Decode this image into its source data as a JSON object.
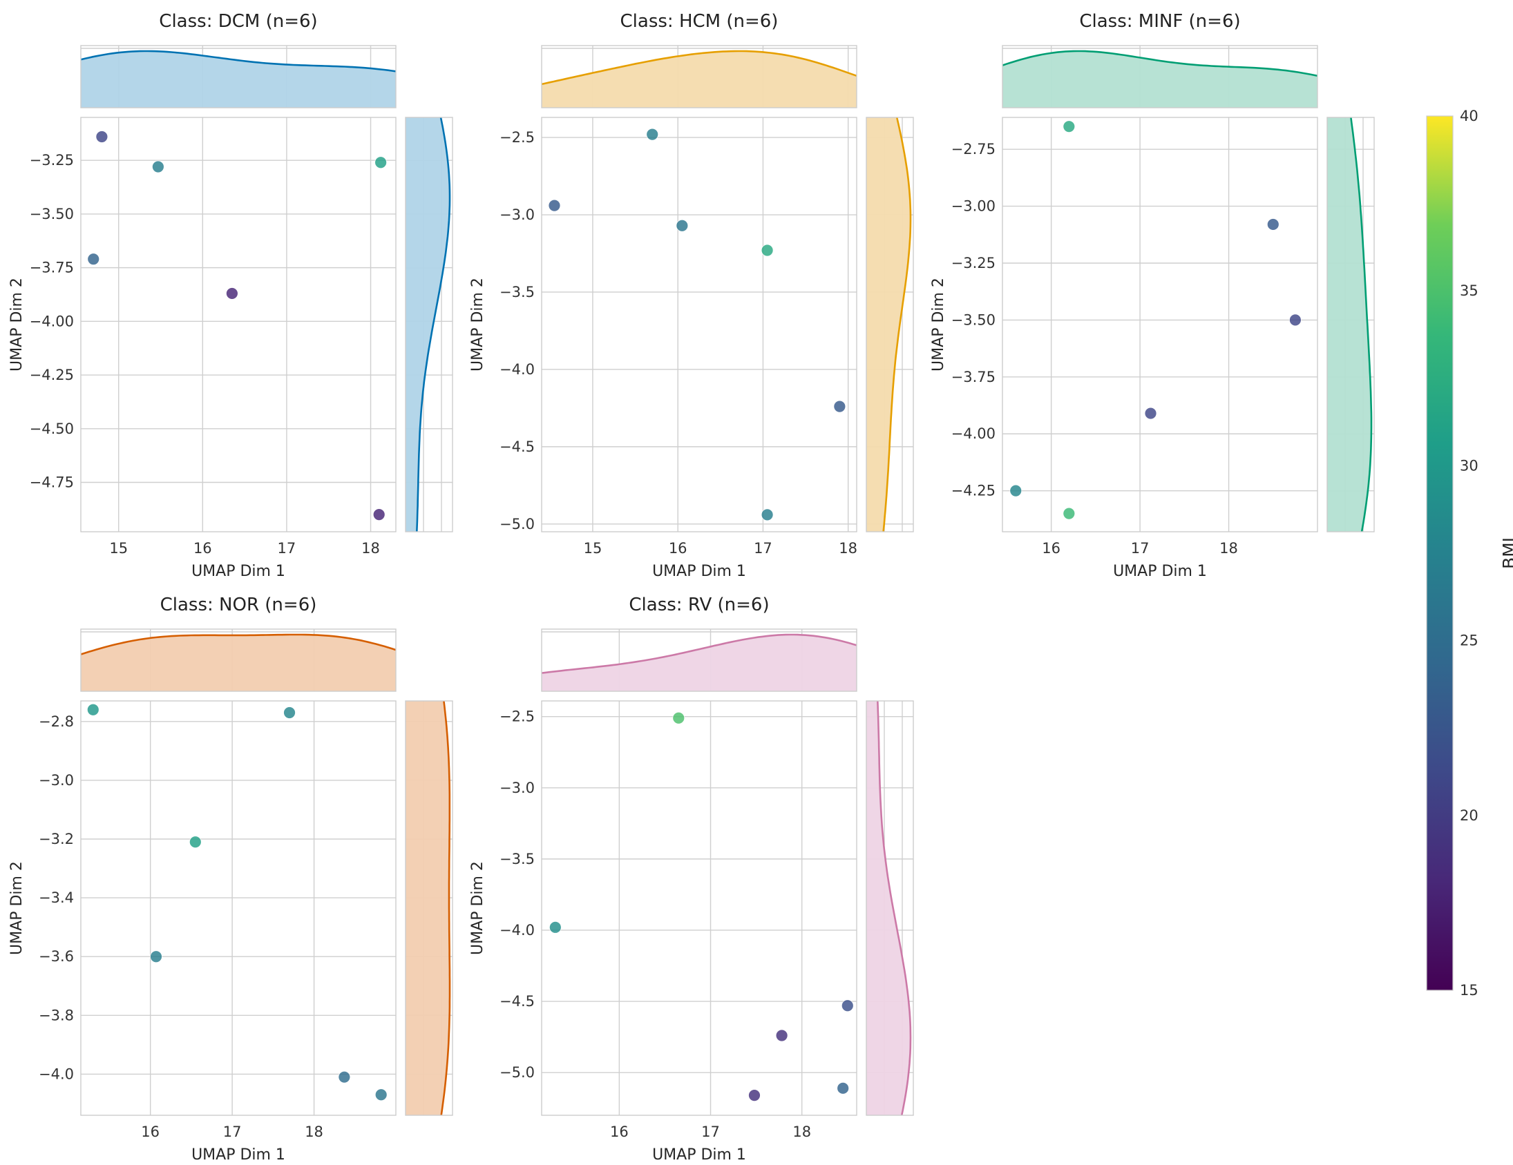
{
  "chart_data": {
    "type": "scatter",
    "colorbar": {
      "label": "BMI",
      "range": [
        15,
        40
      ],
      "ticks": [
        15,
        20,
        25,
        30,
        35,
        40
      ],
      "colormap": "viridis"
    },
    "xlabel": "UMAP Dim 1",
    "ylabel": "UMAP Dim 2",
    "panels": [
      {
        "title": "Class: DCM (n=6)",
        "color": "#0072b2",
        "fill": "#b0d4e8",
        "xlim": [
          14.55,
          18.3
        ],
        "ylim": [
          -4.98,
          -3.05
        ],
        "xticks": [
          15,
          16,
          17,
          18
        ],
        "yticks": [
          -3.25,
          -3.5,
          -3.75,
          -4.0,
          -4.25,
          -4.5,
          -4.75
        ],
        "yfmt": 2,
        "points": [
          {
            "x": 14.8,
            "y": -3.14,
            "bmi": 21
          },
          {
            "x": 15.47,
            "y": -3.28,
            "bmi": 27
          },
          {
            "x": 18.12,
            "y": -3.26,
            "bmi": 31
          },
          {
            "x": 14.7,
            "y": -3.71,
            "bmi": 24
          },
          {
            "x": 16.35,
            "y": -3.87,
            "bmi": 18
          },
          {
            "x": 18.1,
            "y": -4.9,
            "bmi": 18
          }
        ]
      },
      {
        "title": "Class: HCM (n=6)",
        "color": "#e69f00",
        "fill": "#f4dbad",
        "xlim": [
          14.4,
          18.1
        ],
        "ylim": [
          -5.05,
          -2.37
        ],
        "xticks": [
          15,
          16,
          17,
          18
        ],
        "yticks": [
          -2.5,
          -3.0,
          -3.5,
          -4.0,
          -4.5,
          -5.0
        ],
        "yfmt": 1,
        "points": [
          {
            "x": 15.7,
            "y": -2.48,
            "bmi": 27
          },
          {
            "x": 14.55,
            "y": -2.94,
            "bmi": 23
          },
          {
            "x": 16.05,
            "y": -3.07,
            "bmi": 26
          },
          {
            "x": 17.05,
            "y": -3.23,
            "bmi": 32
          },
          {
            "x": 17.9,
            "y": -4.24,
            "bmi": 23
          },
          {
            "x": 17.05,
            "y": -4.94,
            "bmi": 27
          }
        ]
      },
      {
        "title": "Class: MINF (n=6)",
        "color": "#009e73",
        "fill": "#b3e0d2",
        "xlim": [
          15.45,
          19.0
        ],
        "ylim": [
          -4.43,
          -2.61
        ],
        "xticks": [
          16,
          17,
          18
        ],
        "yticks": [
          -2.75,
          -3.0,
          -3.25,
          -3.5,
          -3.75,
          -4.0,
          -4.25
        ],
        "yfmt": 2,
        "points": [
          {
            "x": 16.2,
            "y": -2.65,
            "bmi": 32
          },
          {
            "x": 18.5,
            "y": -3.08,
            "bmi": 23
          },
          {
            "x": 18.75,
            "y": -3.5,
            "bmi": 21
          },
          {
            "x": 17.12,
            "y": -3.91,
            "bmi": 21
          },
          {
            "x": 15.6,
            "y": -4.25,
            "bmi": 28
          },
          {
            "x": 16.2,
            "y": -4.35,
            "bmi": 34
          }
        ]
      },
      {
        "title": "Class: NOR (n=6)",
        "color": "#d55e00",
        "fill": "#f2cdb0",
        "xlim": [
          15.15,
          19.0
        ],
        "ylim": [
          -4.14,
          -2.73
        ],
        "xticks": [
          16,
          17,
          18
        ],
        "yticks": [
          -2.8,
          -3.0,
          -3.2,
          -3.4,
          -3.6,
          -3.8,
          -4.0
        ],
        "yfmt": 1,
        "points": [
          {
            "x": 15.3,
            "y": -2.76,
            "bmi": 30
          },
          {
            "x": 17.7,
            "y": -2.77,
            "bmi": 28
          },
          {
            "x": 16.55,
            "y": -3.21,
            "bmi": 31
          },
          {
            "x": 16.07,
            "y": -3.6,
            "bmi": 27
          },
          {
            "x": 18.37,
            "y": -4.01,
            "bmi": 25
          },
          {
            "x": 18.82,
            "y": -4.07,
            "bmi": 26
          }
        ]
      },
      {
        "title": "Class: RV (n=6)",
        "color": "#cc79a7",
        "fill": "#eed4e5",
        "xlim": [
          15.15,
          18.6
        ],
        "ylim": [
          -5.3,
          -2.39
        ],
        "xticks": [
          16,
          17,
          18
        ],
        "yticks": [
          -2.5,
          -3.0,
          -3.5,
          -4.0,
          -4.5,
          -5.0
        ],
        "yfmt": 1,
        "points": [
          {
            "x": 16.65,
            "y": -2.51,
            "bmi": 35
          },
          {
            "x": 15.3,
            "y": -3.98,
            "bmi": 29
          },
          {
            "x": 18.5,
            "y": -4.53,
            "bmi": 22
          },
          {
            "x": 17.78,
            "y": -4.74,
            "bmi": 19
          },
          {
            "x": 17.48,
            "y": -5.16,
            "bmi": 19
          },
          {
            "x": 18.45,
            "y": -5.11,
            "bmi": 24
          }
        ]
      }
    ]
  }
}
